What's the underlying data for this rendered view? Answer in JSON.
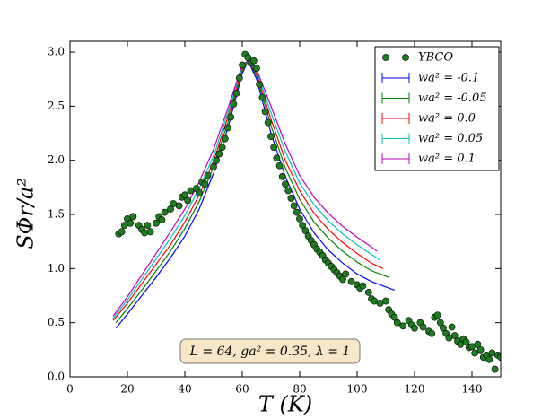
{
  "chart_data": {
    "type": "scatter",
    "xlabel": "T (K)",
    "ylabel": "SΦr/a²",
    "annotation": "L = 64, ga² = 0.35, λ = 1",
    "xlim": [
      0,
      150
    ],
    "ylim": [
      0,
      3.1
    ],
    "xticks": [
      0,
      20,
      40,
      60,
      80,
      100,
      120,
      140
    ],
    "yticks": [
      {
        "value": 0,
        "label": "0.0"
      },
      {
        "value": 0.5,
        "label": "0.5"
      },
      {
        "value": 1,
        "label": "1.0"
      },
      {
        "value": 1.5,
        "label": "1.5"
      },
      {
        "value": 2,
        "label": "2.0"
      },
      {
        "value": 2.5,
        "label": "2.5"
      },
      {
        "value": 3,
        "label": "3.0"
      }
    ],
    "legend": "upper right",
    "scatter": {
      "name": "YBCO",
      "color": "#1e7d1e",
      "x": [
        17,
        18,
        19,
        20,
        21,
        22,
        24,
        25,
        26,
        27,
        28,
        30,
        31,
        32,
        33,
        35,
        36,
        38,
        39,
        40,
        41,
        42,
        44,
        45,
        46,
        47,
        48,
        50,
        51,
        52,
        53,
        54,
        55,
        56,
        57,
        58,
        59,
        60,
        61,
        62,
        63,
        64,
        65,
        66,
        67,
        68,
        69,
        70,
        71,
        72,
        73,
        74,
        75,
        76,
        77,
        78,
        79,
        80,
        81,
        82,
        83,
        84,
        85,
        86,
        87,
        88,
        89,
        90,
        91,
        92,
        93,
        94,
        95,
        96,
        98,
        100,
        101,
        102,
        104,
        105,
        106,
        108,
        110,
        111,
        112,
        113,
        114,
        116,
        118,
        119,
        120,
        122,
        123,
        125,
        126,
        127,
        128,
        129,
        130,
        131,
        132,
        133,
        134,
        135,
        136,
        137,
        138,
        139,
        140,
        141,
        142,
        143,
        144,
        145,
        146,
        147,
        148,
        149,
        150
      ],
      "values": [
        1.32,
        1.34,
        1.4,
        1.46,
        1.42,
        1.48,
        1.4,
        1.36,
        1.33,
        1.4,
        1.34,
        1.42,
        1.48,
        1.45,
        1.52,
        1.55,
        1.6,
        1.58,
        1.66,
        1.68,
        1.63,
        1.72,
        1.74,
        1.7,
        1.8,
        1.78,
        1.86,
        1.94,
        2.0,
        2.06,
        2.12,
        2.2,
        2.3,
        2.4,
        2.52,
        2.62,
        2.76,
        2.88,
        2.98,
        2.95,
        2.9,
        2.92,
        2.85,
        2.7,
        2.58,
        2.45,
        2.35,
        2.22,
        2.12,
        2.02,
        1.95,
        1.85,
        1.78,
        1.72,
        1.65,
        1.58,
        1.52,
        1.46,
        1.4,
        1.35,
        1.3,
        1.26,
        1.22,
        1.18,
        1.15,
        1.12,
        1.08,
        1.05,
        1.02,
        0.99,
        0.96,
        0.93,
        0.9,
        0.95,
        0.88,
        0.85,
        0.82,
        0.84,
        0.78,
        0.72,
        0.7,
        0.68,
        0.7,
        0.62,
        0.58,
        0.55,
        0.5,
        0.47,
        0.52,
        0.48,
        0.45,
        0.5,
        0.46,
        0.42,
        0.4,
        0.55,
        0.57,
        0.5,
        0.45,
        0.4,
        0.36,
        0.46,
        0.38,
        0.33,
        0.3,
        0.35,
        0.32,
        0.27,
        0.28,
        0.22,
        0.3,
        0.25,
        0.18,
        0.2,
        0.16,
        0.22,
        0.07,
        0.2,
        0.18
      ]
    },
    "series": [
      {
        "name": "wa² = -0.1",
        "color": "#0000ff",
        "x": [
          16,
          20,
          25,
          30,
          35,
          40,
          45,
          50,
          55,
          60,
          62,
          65,
          70,
          75,
          80,
          85,
          90,
          95,
          100,
          105,
          110,
          113
        ],
        "values": [
          0.45,
          0.58,
          0.75,
          0.92,
          1.1,
          1.3,
          1.55,
          1.88,
          2.3,
          2.8,
          2.92,
          2.75,
          2.25,
          1.85,
          1.55,
          1.33,
          1.17,
          1.05,
          0.95,
          0.88,
          0.83,
          0.8
        ]
      },
      {
        "name": "wa² = -0.05",
        "color": "#008000",
        "x": [
          16,
          20,
          25,
          30,
          35,
          40,
          45,
          50,
          55,
          60,
          62,
          65,
          70,
          75,
          80,
          85,
          90,
          95,
          100,
          105,
          111
        ],
        "values": [
          0.5,
          0.63,
          0.8,
          0.98,
          1.16,
          1.37,
          1.62,
          1.94,
          2.35,
          2.82,
          2.92,
          2.78,
          2.32,
          1.93,
          1.64,
          1.43,
          1.28,
          1.16,
          1.06,
          0.98,
          0.92
        ]
      },
      {
        "name": "wa² = 0.0",
        "color": "#ff0000",
        "x": [
          15,
          20,
          25,
          30,
          35,
          40,
          45,
          50,
          55,
          60,
          62,
          65,
          70,
          75,
          80,
          85,
          90,
          95,
          100,
          105,
          109
        ],
        "values": [
          0.52,
          0.68,
          0.86,
          1.04,
          1.22,
          1.43,
          1.68,
          1.99,
          2.4,
          2.84,
          2.92,
          2.8,
          2.38,
          2.0,
          1.72,
          1.51,
          1.36,
          1.24,
          1.14,
          1.05,
          1.0
        ]
      },
      {
        "name": "wa² = 0.05",
        "color": "#00bfbf",
        "x": [
          15,
          20,
          25,
          30,
          35,
          40,
          45,
          50,
          55,
          60,
          62,
          65,
          70,
          75,
          80,
          85,
          90,
          95,
          100,
          105,
          108
        ],
        "values": [
          0.54,
          0.71,
          0.9,
          1.09,
          1.28,
          1.49,
          1.74,
          2.04,
          2.44,
          2.86,
          2.92,
          2.82,
          2.44,
          2.08,
          1.79,
          1.59,
          1.44,
          1.32,
          1.22,
          1.13,
          1.08
        ]
      },
      {
        "name": "wa² = 0.1",
        "color": "#bf00bf",
        "x": [
          15,
          20,
          25,
          30,
          35,
          40,
          45,
          50,
          55,
          60,
          62,
          65,
          70,
          75,
          80,
          85,
          90,
          95,
          100,
          105,
          107
        ],
        "values": [
          0.56,
          0.74,
          0.94,
          1.14,
          1.34,
          1.55,
          1.8,
          2.1,
          2.48,
          2.88,
          2.92,
          2.84,
          2.5,
          2.15,
          1.86,
          1.66,
          1.51,
          1.39,
          1.29,
          1.2,
          1.16
        ]
      }
    ]
  }
}
